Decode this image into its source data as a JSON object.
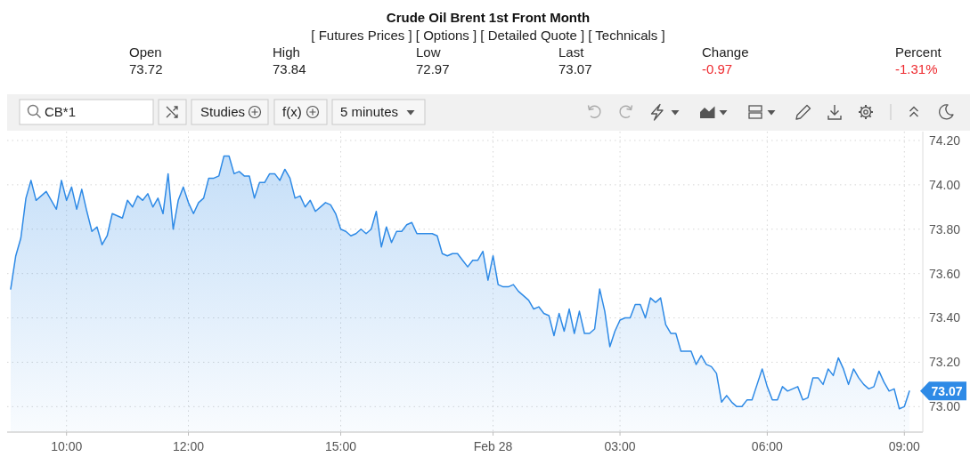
{
  "chart_data": {
    "type": "area",
    "title": "Crude Oil Brent 1st Front Month",
    "subtitle": "[ Futures Prices ] [ Options ] [ Detailed Quote ] [ Technicals ]",
    "annotations": [
      "Open",
      "73.72",
      "High",
      "73.84",
      "Low",
      "72.97",
      "Last",
      "73.07",
      "Change",
      "-0.97",
      "Percent",
      "-1.31%",
      "CB*1",
      "Studies",
      "f(x)",
      "5 minutes",
      "73.07"
    ],
    "categories": [
      null,
      null,
      null,
      null,
      null,
      null,
      null,
      null,
      null,
      null,
      null,
      "10:00",
      null,
      null,
      null,
      null,
      null,
      null,
      null,
      null,
      null,
      null,
      null,
      null,
      null,
      null,
      null,
      null,
      null,
      null,
      null,
      null,
      null,
      null,
      null,
      "12:00",
      null,
      null,
      null,
      null,
      null,
      null,
      null,
      null,
      null,
      null,
      null,
      null,
      null,
      null,
      null,
      null,
      null,
      null,
      null,
      null,
      null,
      null,
      null,
      null,
      null,
      null,
      null,
      null,
      null,
      "15:00",
      null,
      null,
      null,
      null,
      null,
      null,
      null,
      null,
      null,
      null,
      null,
      null,
      null,
      null,
      null,
      null,
      null,
      null,
      null,
      null,
      null,
      null,
      null,
      null,
      null,
      null,
      null,
      null,
      null,
      "Feb 28",
      null,
      null,
      null,
      null,
      null,
      null,
      null,
      null,
      null,
      null,
      null,
      null,
      null,
      null,
      null,
      null,
      null,
      null,
      null,
      null,
      null,
      null,
      null,
      null,
      "03:00",
      null,
      null,
      null,
      null,
      null,
      null,
      null,
      null,
      null,
      null,
      null,
      null,
      null,
      null,
      null,
      null,
      null,
      null,
      null,
      null,
      null,
      null,
      null,
      null,
      null,
      null,
      null,
      null,
      "06:00",
      null,
      null,
      null,
      null,
      null,
      null,
      null,
      null,
      null,
      null,
      null,
      null,
      null,
      null,
      null,
      null,
      null,
      null,
      null,
      null,
      null,
      null,
      null,
      null,
      null,
      null,
      "09:00",
      null
    ],
    "values": [
      73.53,
      73.68,
      73.76,
      73.94,
      74.02,
      73.93,
      73.95,
      73.97,
      73.93,
      73.89,
      74.02,
      73.93,
      73.99,
      73.89,
      73.98,
      73.88,
      73.79,
      73.81,
      73.73,
      73.77,
      73.87,
      73.86,
      73.85,
      73.93,
      73.9,
      73.95,
      73.93,
      73.96,
      73.9,
      73.94,
      73.87,
      74.05,
      73.8,
      73.93,
      73.99,
      73.92,
      73.87,
      73.92,
      73.94,
      74.03,
      74.03,
      74.04,
      74.13,
      74.13,
      74.05,
      74.06,
      74.04,
      74.04,
      73.94,
      74.01,
      74.01,
      74.05,
      74.05,
      74.02,
      74.07,
      74.03,
      73.94,
      73.95,
      73.9,
      73.93,
      73.88,
      73.9,
      73.92,
      73.91,
      73.87,
      73.8,
      73.79,
      73.77,
      73.78,
      73.8,
      73.78,
      73.8,
      73.88,
      73.72,
      73.81,
      73.74,
      73.79,
      73.79,
      73.82,
      73.83,
      73.78,
      73.78,
      73.78,
      73.78,
      73.77,
      73.69,
      73.68,
      73.69,
      73.69,
      73.66,
      73.63,
      73.66,
      73.66,
      73.7,
      73.57,
      73.68,
      73.55,
      73.54,
      73.54,
      73.55,
      73.52,
      73.5,
      73.48,
      73.44,
      73.45,
      73.42,
      73.41,
      73.32,
      73.42,
      73.34,
      73.44,
      73.33,
      73.43,
      73.33,
      73.33,
      73.35,
      73.53,
      73.43,
      73.27,
      73.34,
      73.39,
      73.4,
      73.4,
      73.46,
      73.46,
      73.4,
      73.49,
      73.47,
      73.49,
      73.37,
      73.33,
      73.33,
      73.25,
      73.25,
      73.25,
      73.19,
      73.23,
      73.19,
      73.18,
      73.15,
      73.02,
      73.05,
      73.02,
      73.0,
      73.0,
      73.03,
      73.03,
      73.1,
      73.17,
      73.09,
      73.03,
      73.03,
      73.09,
      73.07,
      73.08,
      73.09,
      73.03,
      73.04,
      73.13,
      73.13,
      73.1,
      73.17,
      73.14,
      73.22,
      73.17,
      73.1,
      73.17,
      73.13,
      73.1,
      73.08,
      73.09,
      73.16,
      73.11,
      73.07,
      73.08,
      72.99,
      73.0,
      73.07
    ],
    "color": "#2e8ae6",
    "ylim": [
      72.885,
      74.24
    ],
    "yticks": [
      {
        "value": 73,
        "label": "73.00"
      },
      {
        "value": 73.2,
        "label": "73.20"
      },
      {
        "value": 73.4,
        "label": "73.40"
      },
      {
        "value": 73.6,
        "label": "73.60"
      },
      {
        "value": 73.8,
        "label": "73.80"
      },
      {
        "value": 74,
        "label": "74.00"
      },
      {
        "value": 74.2,
        "label": "74.20"
      }
    ],
    "grid": true
  }
}
